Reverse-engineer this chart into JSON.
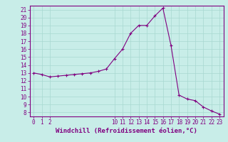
{
  "x": [
    0,
    1,
    2,
    3,
    4,
    5,
    6,
    7,
    8,
    9,
    10,
    11,
    12,
    13,
    14,
    15,
    16,
    17,
    18,
    19,
    20,
    21,
    22,
    23
  ],
  "y": [
    13.0,
    12.8,
    12.5,
    12.6,
    12.7,
    12.8,
    12.9,
    13.0,
    13.2,
    13.5,
    14.8,
    16.0,
    18.0,
    19.0,
    19.0,
    20.2,
    21.2,
    16.5,
    10.2,
    9.7,
    9.5,
    8.7,
    8.2,
    7.8
  ],
  "line_color": "#800080",
  "marker": "+",
  "marker_color": "#800080",
  "bg_color": "#c8ede8",
  "grid_color": "#a8d8d0",
  "xlabel": "Windchill (Refroidissement éolien,°C)",
  "xlim": [
    -0.5,
    23.5
  ],
  "ylim": [
    7.5,
    21.5
  ],
  "yticks": [
    8,
    9,
    10,
    11,
    12,
    13,
    14,
    15,
    16,
    17,
    18,
    19,
    20,
    21
  ],
  "xticks": [
    0,
    1,
    2,
    10,
    11,
    12,
    13,
    14,
    15,
    16,
    17,
    18,
    19,
    20,
    21,
    22,
    23
  ],
  "tick_label_fontsize": 5.5,
  "xlabel_fontsize": 6.5,
  "line_width": 0.8,
  "marker_size": 3.5
}
